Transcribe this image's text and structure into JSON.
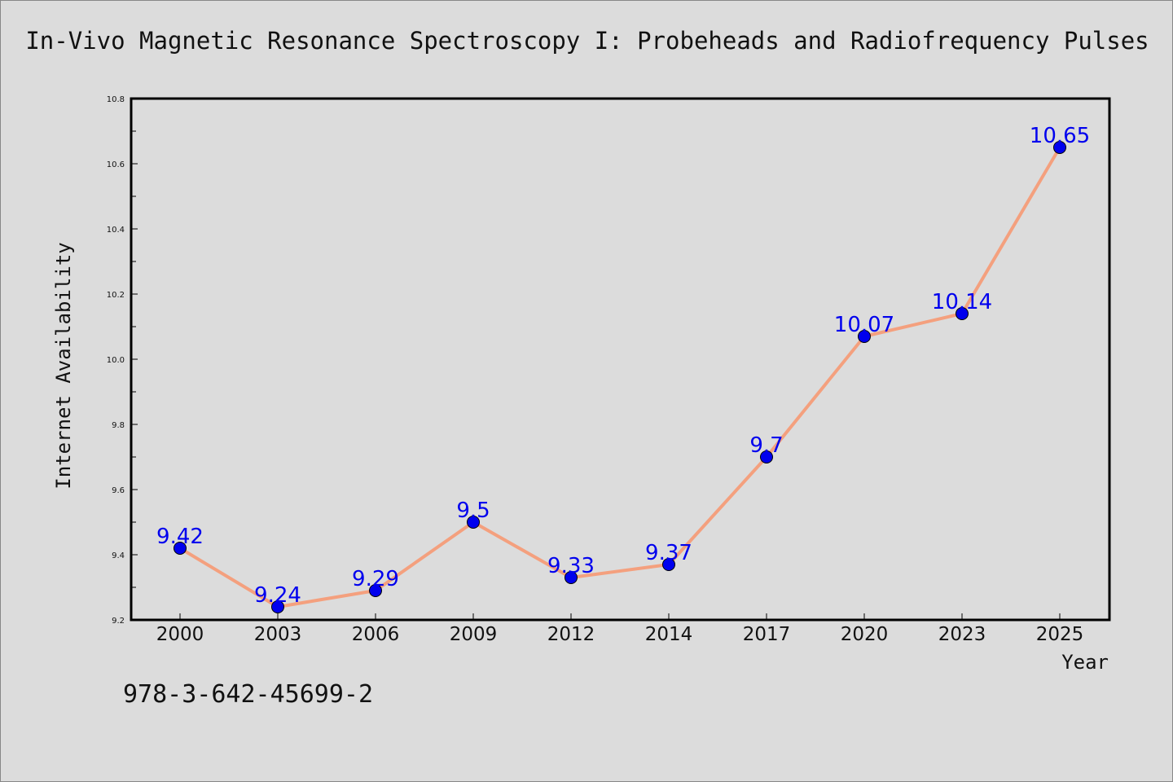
{
  "chart_data": {
    "type": "line",
    "title": "In-Vivo Magnetic Resonance Spectroscopy I: Probeheads and Radiofrequency Pulses",
    "xlabel": "Year",
    "ylabel": "Internet Availability",
    "categories": [
      "2000",
      "2003",
      "2006",
      "2009",
      "2012",
      "2014",
      "2017",
      "2020",
      "2023",
      "2025"
    ],
    "series": [
      {
        "values": [
          9.42,
          9.24,
          9.29,
          9.5,
          9.33,
          9.37,
          9.7,
          10.07,
          10.14,
          10.65
        ]
      }
    ],
    "data_labels": [
      "9.42",
      "9.24",
      "9.29",
      "9.5",
      "9.33",
      "9.37",
      "9.7",
      "10.07",
      "10.14",
      "10.65"
    ],
    "ylim": [
      9.2,
      10.8
    ],
    "yticks": [
      "9.2",
      "9.4",
      "9.6",
      "9.8",
      "10.0",
      "10.2",
      "10.4",
      "10.6",
      "10.8"
    ],
    "grid": false,
    "colors": {
      "line": "#f4a07e",
      "marker": "#0000ee",
      "label": "#0000ee"
    }
  },
  "footer_note": "978-3-642-45699-2"
}
